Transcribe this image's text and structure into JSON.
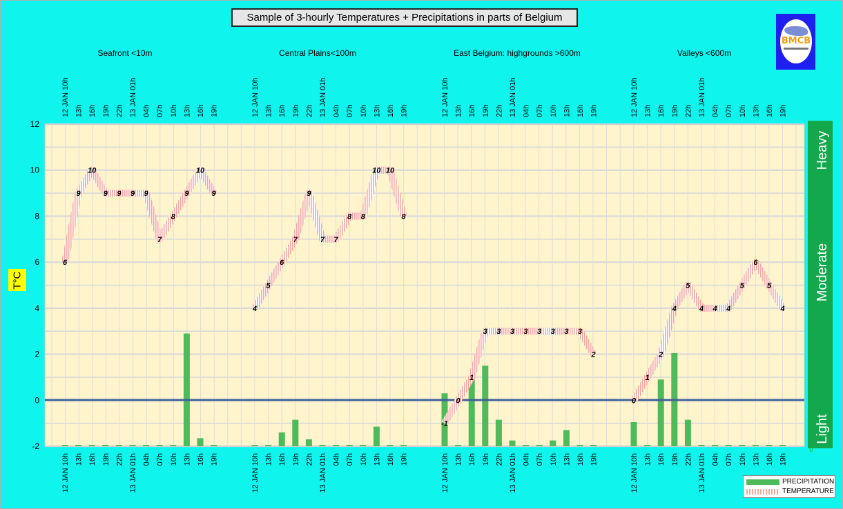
{
  "title": "Sample of 3-hourly Temperatures + Precipitations in parts of Belgium",
  "y_axis_label": "T°C",
  "logo_text": "BMCB",
  "intensity_labels": [
    "Heavy",
    "Moderate",
    "Light"
  ],
  "intensity_corner_value": "0",
  "legend": {
    "precipitation": "PRECIPITATION",
    "temperature": "TEMPERATURE"
  },
  "colors": {
    "background": "#0ff5ee",
    "plot_area": "#fff4cc",
    "precipitation": "#4dbb5c",
    "temperature": "#f2a7a0",
    "zero_line": "#3f5f9e",
    "intensity_bar": "#12a84b",
    "logo_bg": "#1f1ff0"
  },
  "chart_data": {
    "type": "bar+line",
    "ylim": [
      -2,
      12
    ],
    "yticks": [
      -2,
      0,
      2,
      4,
      6,
      8,
      10,
      12
    ],
    "grid": true,
    "legend_position": "bottom-right",
    "groups": [
      {
        "name": "Seafront <10m",
        "ticks": [
          "12 JAN 10h",
          "13h",
          "16h",
          "19h",
          "22h",
          "13 JAN 01h",
          "04h",
          "07h",
          "10h",
          "13h",
          "16h",
          "19h"
        ],
        "temperature": [
          6,
          9,
          10,
          9,
          9,
          9,
          9,
          7,
          8,
          9,
          10,
          9
        ],
        "precipitation": [
          -2,
          -2,
          -2,
          -2,
          -2,
          -2,
          -2,
          -2,
          -2,
          2.9,
          -1.65,
          -2
        ]
      },
      {
        "name": "Central Plains<100m",
        "ticks": [
          "12 JAN 10h",
          "13h",
          "16h",
          "19h",
          "22h",
          "13 JAN 01h",
          "04h",
          "07h",
          "10h",
          "13h",
          "16h",
          "19h"
        ],
        "temperature": [
          4,
          5,
          6,
          7,
          9,
          7,
          7,
          8,
          8,
          10,
          10,
          8
        ],
        "precipitation": [
          -2,
          -2,
          -1.4,
          -0.85,
          -1.7,
          -2,
          -2,
          -2,
          -2,
          -1.15,
          -2,
          -2
        ]
      },
      {
        "name": "East Belgium:     highgrounds >600m",
        "ticks": [
          "12 JAN 10h",
          "13h",
          "16h",
          "19h",
          "22h",
          "13 JAN 01h",
          "04h",
          "07h",
          "10h",
          "13h",
          "16h",
          "19h"
        ],
        "temperature": [
          -1,
          0,
          1,
          3,
          3,
          3,
          3,
          3,
          3,
          3,
          3,
          2
        ],
        "precipitation": [
          0.3,
          -2,
          1.0,
          1.5,
          -0.85,
          -1.75,
          -2,
          -2,
          -1.75,
          -1.3,
          -2,
          -2
        ]
      },
      {
        "name": "Valleys <600m",
        "ticks": [
          "12 JAN 10h",
          "13h",
          "16h",
          "19h",
          "22h",
          "13 JAN 01h",
          "04h",
          "07h",
          "10h",
          "13h",
          "16h",
          "19h"
        ],
        "temperature": [
          0,
          1,
          2,
          4,
          5,
          4,
          4,
          4,
          5,
          6,
          5,
          4
        ],
        "precipitation": [
          -0.95,
          -2,
          0.9,
          2.05,
          -0.85,
          -2,
          -2,
          -2,
          -2,
          -2,
          -2,
          -2
        ]
      }
    ]
  }
}
